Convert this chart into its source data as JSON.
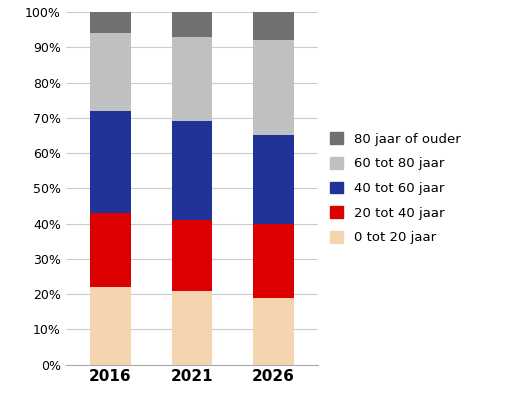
{
  "categories": [
    "2016",
    "2021",
    "2026"
  ],
  "series": [
    {
      "label": "0 tot 20 jaar",
      "values": [
        22,
        21,
        19
      ],
      "color": "#f5d5b0"
    },
    {
      "label": "20 tot 40 jaar",
      "values": [
        21,
        20,
        21
      ],
      "color": "#dd0000"
    },
    {
      "label": "40 tot 60 jaar",
      "values": [
        29,
        28,
        25
      ],
      "color": "#1f3399"
    },
    {
      "label": "60 tot 80 jaar",
      "values": [
        22,
        24,
        27
      ],
      "color": "#c0c0c0"
    },
    {
      "label": "80 jaar of ouder",
      "values": [
        6,
        7,
        8
      ],
      "color": "#707070"
    }
  ],
  "ylim": [
    0,
    100
  ],
  "yticks": [
    0,
    10,
    20,
    30,
    40,
    50,
    60,
    70,
    80,
    90,
    100
  ],
  "ytick_labels": [
    "0%",
    "10%",
    "20%",
    "30%",
    "40%",
    "50%",
    "60%",
    "70%",
    "80%",
    "90%",
    "100%"
  ],
  "bar_width": 0.5,
  "figsize": [
    5.05,
    4.05
  ],
  "dpi": 100,
  "bg_color": "#ffffff"
}
